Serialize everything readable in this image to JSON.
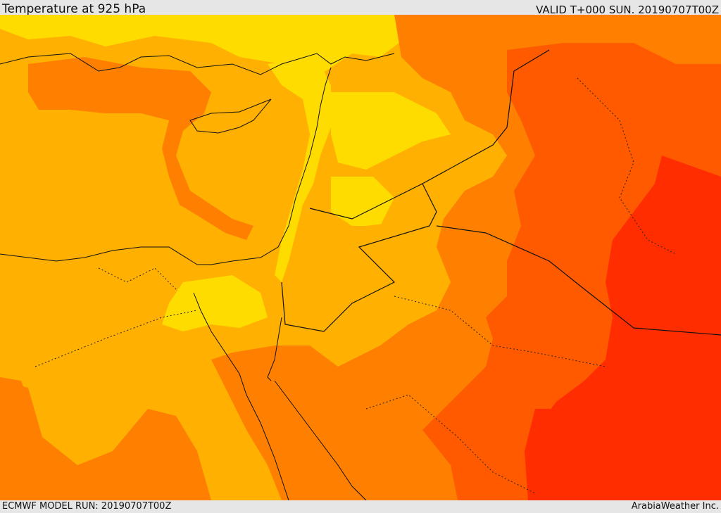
{
  "header": {
    "title": "Temperature at 925 hPa",
    "valid": "VALID T+000 SUN. 20190707T00Z"
  },
  "footer": {
    "model_run": "ECMWF MODEL RUN: 20190707T00Z",
    "credit": "ArabiaWeather Inc."
  },
  "palette": {
    "yellow": "#ffdc00",
    "light_orange": "#ffb000",
    "orange": "#ff8000",
    "dark_orange": "#ff5a00",
    "red": "#ff2d00",
    "boundary": "#111111"
  }
}
